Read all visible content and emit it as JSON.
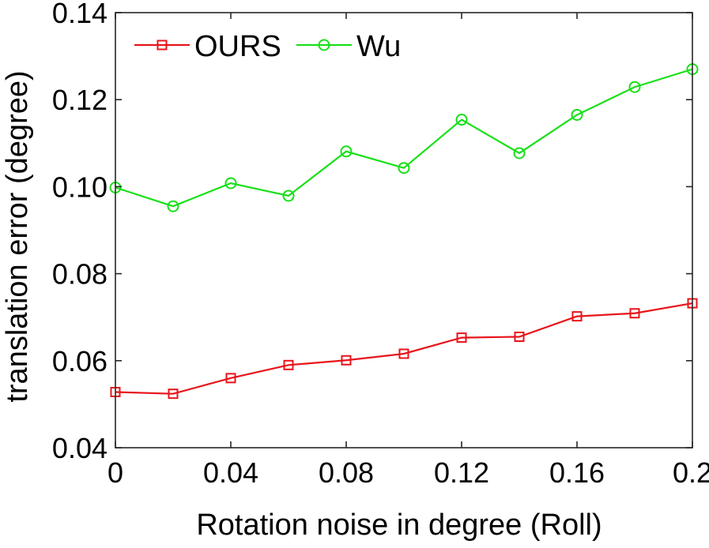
{
  "chart_data": {
    "type": "line",
    "title": "",
    "xlabel": "Rotation noise in degree (Roll)",
    "ylabel": "translation error (degree)",
    "xlim": [
      0,
      0.2
    ],
    "ylim": [
      0.04,
      0.14
    ],
    "xticks": [
      0,
      0.04,
      0.08,
      0.12,
      0.16,
      0.2
    ],
    "xtick_labels": [
      "0",
      "0.04",
      "0.08",
      "0.12",
      "0.16",
      "0.2"
    ],
    "yticks": [
      0.04,
      0.06,
      0.08,
      0.1,
      0.12,
      0.14
    ],
    "ytick_labels": [
      "0.04",
      "0.06",
      "0.08",
      "0.10",
      "0.12",
      "0.14"
    ],
    "grid": false,
    "legend_position": "top-left",
    "x": [
      0,
      0.02,
      0.04,
      0.06,
      0.08,
      0.1,
      0.12,
      0.14,
      0.16,
      0.18,
      0.2
    ],
    "series": [
      {
        "name": "OURS",
        "color": "#e8141b",
        "marker": "square",
        "values": [
          0.0528,
          0.0524,
          0.056,
          0.059,
          0.0601,
          0.0616,
          0.0653,
          0.0655,
          0.0702,
          0.0709,
          0.0732
        ]
      },
      {
        "name": "Wu",
        "color": "#18e018",
        "marker": "circle",
        "values": [
          0.0998,
          0.0955,
          0.1008,
          0.0979,
          0.1081,
          0.1043,
          0.1154,
          0.1077,
          0.1165,
          0.1229,
          0.127
        ]
      }
    ]
  }
}
